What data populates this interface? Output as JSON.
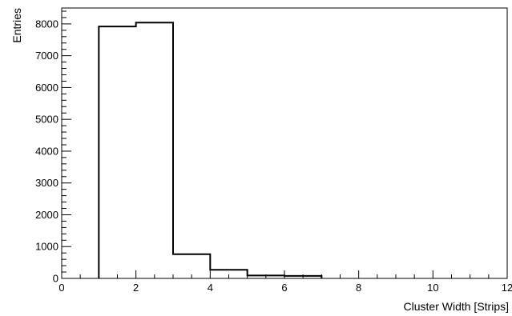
{
  "chart_data": {
    "type": "bar",
    "title": "",
    "xlabel": "Cluster Width [Strips]",
    "ylabel": "Entries",
    "xlim": [
      0,
      12
    ],
    "ylim": [
      0,
      8500
    ],
    "x_ticks": [
      0,
      2,
      4,
      6,
      8,
      10,
      12
    ],
    "y_ticks": [
      0,
      1000,
      2000,
      3000,
      4000,
      5000,
      6000,
      7000,
      8000
    ],
    "bin_edges": [
      1,
      2,
      3,
      4,
      5,
      6,
      7
    ],
    "values": [
      7920,
      8040,
      760,
      270,
      90,
      80
    ],
    "grid": false,
    "line_color": "#000000"
  }
}
